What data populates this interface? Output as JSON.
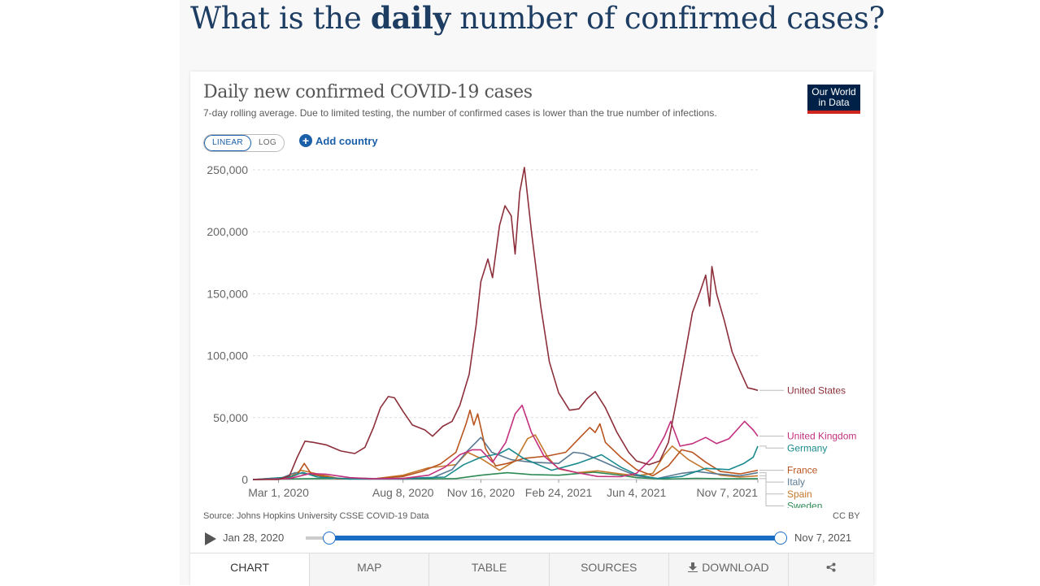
{
  "page": {
    "headline_pre": "What is the ",
    "headline_bold": "daily",
    "headline_post": " number of confirmed cases?"
  },
  "chart_header": {
    "title": "Daily new confirmed COVID-19 cases",
    "subtitle": "7-day rolling average. Due to limited testing, the number of confirmed cases is lower than the true number of infections.",
    "logo_line1": "Our World",
    "logo_line2": "in Data"
  },
  "controls": {
    "scale_linear": "LINEAR",
    "scale_log": "LOG",
    "add_country": "Add country"
  },
  "footer": {
    "source": "Source: Johns Hopkins University CSSE COVID-19 Data",
    "license": "CC BY"
  },
  "timeline": {
    "start_label": "Jan 28, 2020",
    "end_label": "Nov 7, 2021"
  },
  "tabs": {
    "chart": "CHART",
    "map": "MAP",
    "table": "TABLE",
    "sources": "SOURCES",
    "download": "DOWNLOAD"
  },
  "colors": {
    "united_states": "#8c2f3a",
    "united_kingdom": "#c2307e",
    "germany": "#1b8a8c",
    "france": "#b9541f",
    "italy": "#5a7a94",
    "spain": "#c4782c",
    "sweden": "#2d8a55",
    "accent": "#1a6dc5"
  },
  "chart_data": {
    "type": "line",
    "title": "Daily new confirmed COVID-19 cases",
    "subtitle": "7-day rolling average. Due to limited testing, the number of confirmed cases is lower than the true number of infections.",
    "x_tick_labels": [
      "Mar 1, 2020",
      "Aug 8, 2020",
      "Nov 16, 2020",
      "Feb 24, 2021",
      "Jun 4, 2021",
      "Nov 7, 2021"
    ],
    "y_tick_labels": [
      "0",
      "50,000",
      "100,000",
      "150,000",
      "200,000",
      "250,000"
    ],
    "ylim": [
      0,
      250000
    ],
    "xlim": [
      "2020-01-28",
      "2021-11-07"
    ],
    "grid": "horizontal dashed",
    "legend": "right, labels at line ends",
    "series": [
      {
        "name": "United States",
        "points": [
          [
            "2020-01-28",
            0
          ],
          [
            "2020-03-01",
            50
          ],
          [
            "2020-03-15",
            3000
          ],
          [
            "2020-03-25",
            18000
          ],
          [
            "2020-04-04",
            31000
          ],
          [
            "2020-04-15",
            30000
          ],
          [
            "2020-05-01",
            28000
          ],
          [
            "2020-05-20",
            23000
          ],
          [
            "2020-06-07",
            21000
          ],
          [
            "2020-06-20",
            26000
          ],
          [
            "2020-07-01",
            42000
          ],
          [
            "2020-07-10",
            58000
          ],
          [
            "2020-07-20",
            67000
          ],
          [
            "2020-07-28",
            66000
          ],
          [
            "2020-08-08",
            55000
          ],
          [
            "2020-08-20",
            44000
          ],
          [
            "2020-09-05",
            40000
          ],
          [
            "2020-09-15",
            35000
          ],
          [
            "2020-09-28",
            43000
          ],
          [
            "2020-10-10",
            47000
          ],
          [
            "2020-10-20",
            60000
          ],
          [
            "2020-11-01",
            85000
          ],
          [
            "2020-11-10",
            125000
          ],
          [
            "2020-11-16",
            160000
          ],
          [
            "2020-11-25",
            178000
          ],
          [
            "2020-12-01",
            163000
          ],
          [
            "2020-12-10",
            205000
          ],
          [
            "2020-12-17",
            221000
          ],
          [
            "2020-12-25",
            213000
          ],
          [
            "2020-12-30",
            182000
          ],
          [
            "2021-01-05",
            232000
          ],
          [
            "2021-01-11",
            252000
          ],
          [
            "2021-01-20",
            200000
          ],
          [
            "2021-02-01",
            140000
          ],
          [
            "2021-02-12",
            95000
          ],
          [
            "2021-02-24",
            70000
          ],
          [
            "2021-03-10",
            56000
          ],
          [
            "2021-03-22",
            57000
          ],
          [
            "2021-04-01",
            65000
          ],
          [
            "2021-04-12",
            71000
          ],
          [
            "2021-04-25",
            58000
          ],
          [
            "2021-05-10",
            38000
          ],
          [
            "2021-05-25",
            22000
          ],
          [
            "2021-06-04",
            15000
          ],
          [
            "2021-06-20",
            12000
          ],
          [
            "2021-07-04",
            15000
          ],
          [
            "2021-07-15",
            30000
          ],
          [
            "2021-07-25",
            62000
          ],
          [
            "2021-08-05",
            100000
          ],
          [
            "2021-08-15",
            135000
          ],
          [
            "2021-08-25",
            152000
          ],
          [
            "2021-09-01",
            165000
          ],
          [
            "2021-09-06",
            140000
          ],
          [
            "2021-09-09",
            172000
          ],
          [
            "2021-09-15",
            150000
          ],
          [
            "2021-09-25",
            128000
          ],
          [
            "2021-10-05",
            103000
          ],
          [
            "2021-10-15",
            88000
          ],
          [
            "2021-10-25",
            74000
          ],
          [
            "2021-11-01",
            73000
          ],
          [
            "2021-11-07",
            72000
          ]
        ]
      },
      {
        "name": "United Kingdom",
        "points": [
          [
            "2020-01-28",
            0
          ],
          [
            "2020-03-15",
            800
          ],
          [
            "2020-04-10",
            4800
          ],
          [
            "2020-05-01",
            4300
          ],
          [
            "2020-06-01",
            1500
          ],
          [
            "2020-07-01",
            600
          ],
          [
            "2020-08-08",
            900
          ],
          [
            "2020-09-10",
            3500
          ],
          [
            "2020-10-01",
            10000
          ],
          [
            "2020-10-20",
            20000
          ],
          [
            "2020-11-05",
            24000
          ],
          [
            "2020-11-16",
            24000
          ],
          [
            "2020-12-01",
            14000
          ],
          [
            "2020-12-18",
            30000
          ],
          [
            "2020-12-30",
            53000
          ],
          [
            "2021-01-08",
            60000
          ],
          [
            "2021-01-20",
            38000
          ],
          [
            "2021-02-05",
            19000
          ],
          [
            "2021-02-24",
            9000
          ],
          [
            "2021-03-20",
            5500
          ],
          [
            "2021-04-15",
            2500
          ],
          [
            "2021-05-15",
            2300
          ],
          [
            "2021-06-04",
            5000
          ],
          [
            "2021-06-25",
            18000
          ],
          [
            "2021-07-10",
            35000
          ],
          [
            "2021-07-18",
            47000
          ],
          [
            "2021-07-30",
            27000
          ],
          [
            "2021-08-15",
            29000
          ],
          [
            "2021-09-01",
            34000
          ],
          [
            "2021-09-15",
            29000
          ],
          [
            "2021-10-01",
            33000
          ],
          [
            "2021-10-21",
            47000
          ],
          [
            "2021-11-01",
            40000
          ],
          [
            "2021-11-07",
            35000
          ]
        ]
      },
      {
        "name": "Germany",
        "points": [
          [
            "2020-01-28",
            0
          ],
          [
            "2020-03-15",
            2000
          ],
          [
            "2020-04-01",
            5800
          ],
          [
            "2020-04-20",
            2000
          ],
          [
            "2020-06-01",
            400
          ],
          [
            "2020-08-08",
            1000
          ],
          [
            "2020-10-01",
            2000
          ],
          [
            "2020-10-25",
            12000
          ],
          [
            "2020-11-16",
            18000
          ],
          [
            "2020-12-10",
            21000
          ],
          [
            "2020-12-22",
            25000
          ],
          [
            "2021-01-10",
            17000
          ],
          [
            "2021-02-15",
            7500
          ],
          [
            "2021-03-20",
            13000
          ],
          [
            "2021-04-20",
            20000
          ],
          [
            "2021-05-15",
            10000
          ],
          [
            "2021-06-04",
            4000
          ],
          [
            "2021-07-01",
            700
          ],
          [
            "2021-08-01",
            2500
          ],
          [
            "2021-09-01",
            9000
          ],
          [
            "2021-10-01",
            8000
          ],
          [
            "2021-10-20",
            13000
          ],
          [
            "2021-11-01",
            18000
          ],
          [
            "2021-11-07",
            27000
          ]
        ]
      },
      {
        "name": "France",
        "points": [
          [
            "2020-01-28",
            0
          ],
          [
            "2020-03-10",
            500
          ],
          [
            "2020-03-25",
            4000
          ],
          [
            "2020-04-03",
            13000
          ],
          [
            "2020-04-12",
            4500
          ],
          [
            "2020-05-15",
            500
          ],
          [
            "2020-07-01",
            500
          ],
          [
            "2020-08-08",
            2500
          ],
          [
            "2020-09-01",
            6500
          ],
          [
            "2020-09-25",
            12500
          ],
          [
            "2020-10-15",
            22000
          ],
          [
            "2020-10-28",
            45000
          ],
          [
            "2020-11-02",
            56000
          ],
          [
            "2020-11-07",
            44000
          ],
          [
            "2020-11-12",
            53000
          ],
          [
            "2020-11-22",
            25000
          ],
          [
            "2020-12-05",
            11000
          ],
          [
            "2020-12-20",
            13000
          ],
          [
            "2021-01-10",
            17000
          ],
          [
            "2021-02-10",
            19000
          ],
          [
            "2021-03-05",
            22000
          ],
          [
            "2021-03-25",
            35000
          ],
          [
            "2021-04-05",
            42000
          ],
          [
            "2021-04-12",
            38000
          ],
          [
            "2021-04-18",
            45000
          ],
          [
            "2021-04-25",
            30000
          ],
          [
            "2021-05-15",
            18000
          ],
          [
            "2021-06-04",
            8000
          ],
          [
            "2021-06-25",
            3000
          ],
          [
            "2021-07-15",
            11000
          ],
          [
            "2021-08-01",
            24000
          ],
          [
            "2021-08-15",
            22000
          ],
          [
            "2021-09-01",
            14000
          ],
          [
            "2021-09-20",
            6500
          ],
          [
            "2021-10-15",
            4500
          ],
          [
            "2021-11-07",
            7500
          ]
        ]
      },
      {
        "name": "Italy",
        "points": [
          [
            "2020-01-28",
            0
          ],
          [
            "2020-03-01",
            300
          ],
          [
            "2020-03-22",
            5500
          ],
          [
            "2020-04-10",
            4200
          ],
          [
            "2020-05-10",
            1200
          ],
          [
            "2020-06-15",
            300
          ],
          [
            "2020-08-08",
            400
          ],
          [
            "2020-09-15",
            1500
          ],
          [
            "2020-10-10",
            8000
          ],
          [
            "2020-10-28",
            22000
          ],
          [
            "2020-11-16",
            34000
          ],
          [
            "2020-11-30",
            22000
          ],
          [
            "2020-12-25",
            16000
          ],
          [
            "2021-01-20",
            14000
          ],
          [
            "2021-02-24",
            13000
          ],
          [
            "2021-03-15",
            22000
          ],
          [
            "2021-03-28",
            21000
          ],
          [
            "2021-04-20",
            15000
          ],
          [
            "2021-05-15",
            8000
          ],
          [
            "2021-06-04",
            3000
          ],
          [
            "2021-07-01",
            900
          ],
          [
            "2021-08-01",
            5000
          ],
          [
            "2021-08-20",
            6500
          ],
          [
            "2021-09-15",
            4500
          ],
          [
            "2021-10-15",
            3000
          ],
          [
            "2021-11-07",
            5500
          ]
        ]
      },
      {
        "name": "Spain",
        "points": [
          [
            "2020-01-28",
            0
          ],
          [
            "2020-03-15",
            2000
          ],
          [
            "2020-03-30",
            7500
          ],
          [
            "2020-04-20",
            4500
          ],
          [
            "2020-05-20",
            500
          ],
          [
            "2020-07-01",
            500
          ],
          [
            "2020-08-08",
            3500
          ],
          [
            "2020-09-10",
            9500
          ],
          [
            "2020-09-25",
            10500
          ],
          [
            "2020-10-15",
            12000
          ],
          [
            "2020-10-30",
            22000
          ],
          [
            "2020-11-16",
            17000
          ],
          [
            "2020-12-10",
            7500
          ],
          [
            "2020-12-30",
            15000
          ],
          [
            "2021-01-15",
            33000
          ],
          [
            "2021-01-25",
            36000
          ],
          [
            "2021-02-10",
            18000
          ],
          [
            "2021-02-24",
            8500
          ],
          [
            "2021-03-20",
            5500
          ],
          [
            "2021-04-15",
            7000
          ],
          [
            "2021-05-15",
            4500
          ],
          [
            "2021-06-04",
            3000
          ],
          [
            "2021-06-25",
            5000
          ],
          [
            "2021-07-10",
            20000
          ],
          [
            "2021-07-20",
            27000
          ],
          [
            "2021-08-10",
            16000
          ],
          [
            "2021-09-01",
            8000
          ],
          [
            "2021-09-20",
            3500
          ],
          [
            "2021-10-15",
            2000
          ],
          [
            "2021-11-07",
            3000
          ]
        ]
      },
      {
        "name": "Sweden",
        "points": [
          [
            "2020-01-28",
            0
          ],
          [
            "2020-04-10",
            700
          ],
          [
            "2020-06-20",
            1000
          ],
          [
            "2020-08-08",
            300
          ],
          [
            "2020-10-15",
            800
          ],
          [
            "2020-11-16",
            3500
          ],
          [
            "2020-12-20",
            5500
          ],
          [
            "2021-01-20",
            4000
          ],
          [
            "2021-02-24",
            3500
          ],
          [
            "2021-04-10",
            6000
          ],
          [
            "2021-05-15",
            3500
          ],
          [
            "2021-06-04",
            1500
          ],
          [
            "2021-07-10",
            300
          ],
          [
            "2021-08-20",
            1000
          ],
          [
            "2021-10-01",
            600
          ],
          [
            "2021-11-07",
            700
          ]
        ]
      }
    ]
  }
}
